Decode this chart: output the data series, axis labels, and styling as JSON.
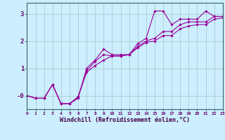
{
  "background_color": "#cceeff",
  "grid_color": "#aacccc",
  "line_color": "#990099",
  "marker_color": "#990099",
  "xlabel": "Windchill (Refroidissement éolien,°C)",
  "xlim": [
    0,
    23
  ],
  "ylim": [
    -0.5,
    3.4
  ],
  "yticks": [
    0,
    1,
    2,
    3
  ],
  "ytick_labels": [
    "-0",
    "1",
    "2",
    "3"
  ],
  "xticks": [
    0,
    1,
    2,
    3,
    4,
    5,
    6,
    7,
    8,
    9,
    10,
    11,
    12,
    13,
    14,
    15,
    16,
    17,
    18,
    19,
    20,
    21,
    22,
    23
  ],
  "series": [
    {
      "x": [
        0,
        1,
        2,
        3,
        4,
        5,
        6,
        7,
        8,
        9,
        10,
        11,
        12,
        13,
        14,
        15,
        16,
        17,
        18,
        19,
        20,
        21,
        22,
        23
      ],
      "y": [
        0.0,
        -0.1,
        -0.1,
        0.4,
        -0.3,
        -0.3,
        -0.1,
        1.0,
        1.3,
        1.7,
        1.5,
        1.5,
        1.5,
        1.9,
        2.1,
        3.1,
        3.1,
        2.6,
        2.8,
        2.8,
        2.8,
        3.1,
        2.9,
        2.9
      ]
    },
    {
      "x": [
        0,
        1,
        2,
        3,
        4,
        5,
        6,
        7,
        8,
        9,
        10,
        11,
        12,
        13,
        14,
        15,
        16,
        17,
        18,
        19,
        20,
        21,
        22,
        23
      ],
      "y": [
        0.0,
        -0.1,
        -0.1,
        0.4,
        -0.3,
        -0.3,
        -0.05,
        0.9,
        1.25,
        1.5,
        1.45,
        1.45,
        1.5,
        1.8,
        2.0,
        2.1,
        2.35,
        2.35,
        2.6,
        2.7,
        2.7,
        2.7,
        2.9,
        2.9
      ]
    },
    {
      "x": [
        0,
        1,
        2,
        3,
        4,
        5,
        6,
        7,
        8,
        9,
        10,
        11,
        12,
        13,
        14,
        15,
        16,
        17,
        18,
        19,
        20,
        21,
        22,
        23
      ],
      "y": [
        0.0,
        -0.1,
        -0.1,
        0.4,
        -0.3,
        -0.3,
        -0.05,
        0.85,
        1.1,
        1.3,
        1.45,
        1.45,
        1.5,
        1.75,
        1.95,
        2.0,
        2.2,
        2.2,
        2.45,
        2.55,
        2.6,
        2.6,
        2.8,
        2.85
      ]
    }
  ]
}
